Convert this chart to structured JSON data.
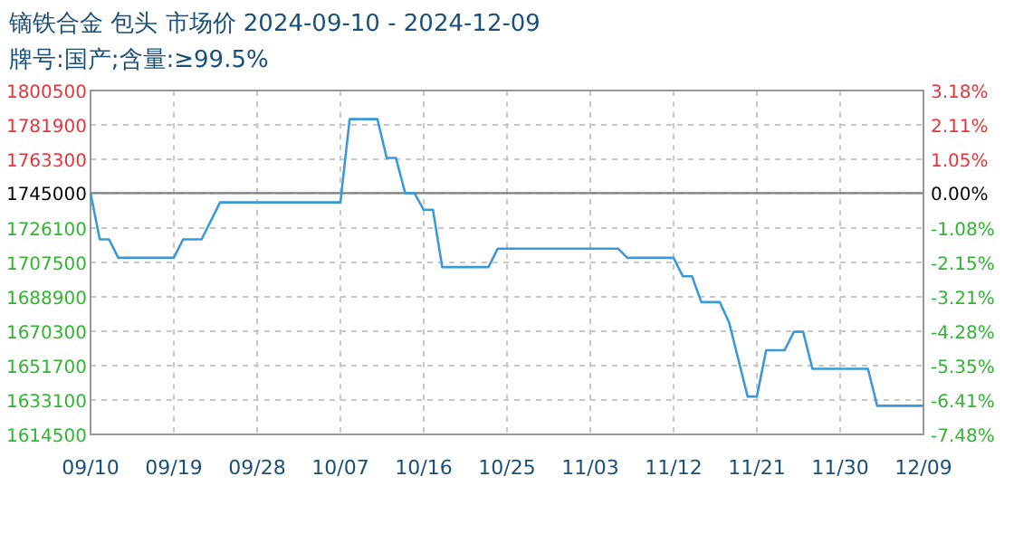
{
  "chart_data": {
    "type": "line",
    "title": "镝铁合金 包头 市场价 2024-09-10 - 2024-12-09",
    "subtitle": "牌号:国产;含量:≥99.5%",
    "x": [
      "2024-09-10",
      "2024-09-11",
      "2024-09-12",
      "2024-09-13",
      "2024-09-19",
      "2024-09-20",
      "2024-09-22",
      "2024-09-24",
      "2024-10-07",
      "2024-10-08",
      "2024-10-11",
      "2024-10-12",
      "2024-10-13",
      "2024-10-14",
      "2024-10-15",
      "2024-10-16",
      "2024-10-17",
      "2024-10-18",
      "2024-10-23",
      "2024-10-24",
      "2024-11-06",
      "2024-11-07",
      "2024-11-12",
      "2024-11-13",
      "2024-11-14",
      "2024-11-15",
      "2024-11-17",
      "2024-11-18",
      "2024-11-20",
      "2024-11-21",
      "2024-11-22",
      "2024-11-24",
      "2024-11-25",
      "2024-11-26",
      "2024-11-27",
      "2024-12-03",
      "2024-12-04",
      "2024-12-09"
    ],
    "series": [
      {
        "color": "#3a9ad9",
        "values": [
          1745000,
          1720000,
          1720000,
          1710000,
          1710000,
          1720000,
          1720000,
          1740000,
          1740000,
          1785000,
          1785000,
          1764000,
          1764000,
          1745000,
          1745000,
          1736000,
          1736000,
          1705000,
          1705000,
          1715000,
          1715000,
          1710000,
          1710000,
          1700000,
          1700000,
          1686000,
          1686000,
          1675000,
          1635000,
          1635000,
          1660000,
          1660000,
          1670000,
          1670000,
          1650000,
          1650000,
          1630000,
          1630000
        ]
      }
    ],
    "xlim": [
      "2024-09-10",
      "2024-12-09"
    ],
    "xticks": [
      {
        "value": "2024-09-10",
        "label": "09/10"
      },
      {
        "value": "2024-09-19",
        "label": "09/19"
      },
      {
        "value": "2024-09-28",
        "label": "09/28"
      },
      {
        "value": "2024-10-07",
        "label": "10/07"
      },
      {
        "value": "2024-10-16",
        "label": "10/16"
      },
      {
        "value": "2024-10-25",
        "label": "10/25"
      },
      {
        "value": "2024-11-03",
        "label": "11/03"
      },
      {
        "value": "2024-11-12",
        "label": "11/12"
      },
      {
        "value": "2024-11-21",
        "label": "11/21"
      },
      {
        "value": "2024-11-30",
        "label": "11/30"
      },
      {
        "value": "2024-12-09",
        "label": "12/09"
      }
    ],
    "ylim": [
      1614500,
      1800500
    ],
    "yticks": [
      1614500,
      1633100,
      1651700,
      1670300,
      1688900,
      1707500,
      1726100,
      1745000,
      1763300,
      1781900,
      1800500
    ],
    "y2lim": [
      -7.48,
      3.18
    ],
    "y2ticks": [
      {
        "value": -7.48,
        "label": "-7.48%"
      },
      {
        "value": -6.41,
        "label": "-6.41%"
      },
      {
        "value": -5.35,
        "label": "-5.35%"
      },
      {
        "value": -4.28,
        "label": "-4.28%"
      },
      {
        "value": -3.21,
        "label": "-3.21%"
      },
      {
        "value": -2.15,
        "label": "-2.15%"
      },
      {
        "value": -1.08,
        "label": "-1.08%"
      },
      {
        "value": 0,
        "label": "0.00%"
      },
      {
        "value": 1.05,
        "label": "1.05%"
      },
      {
        "value": 2.11,
        "label": "2.11%"
      },
      {
        "value": 3.18,
        "label": "3.18%"
      }
    ],
    "ref_lines": [
      {
        "axis": "y",
        "value": 1745000,
        "color": "#808080",
        "line_style": "solid"
      }
    ],
    "grid": true,
    "marker": "none",
    "line_style": "solid"
  }
}
